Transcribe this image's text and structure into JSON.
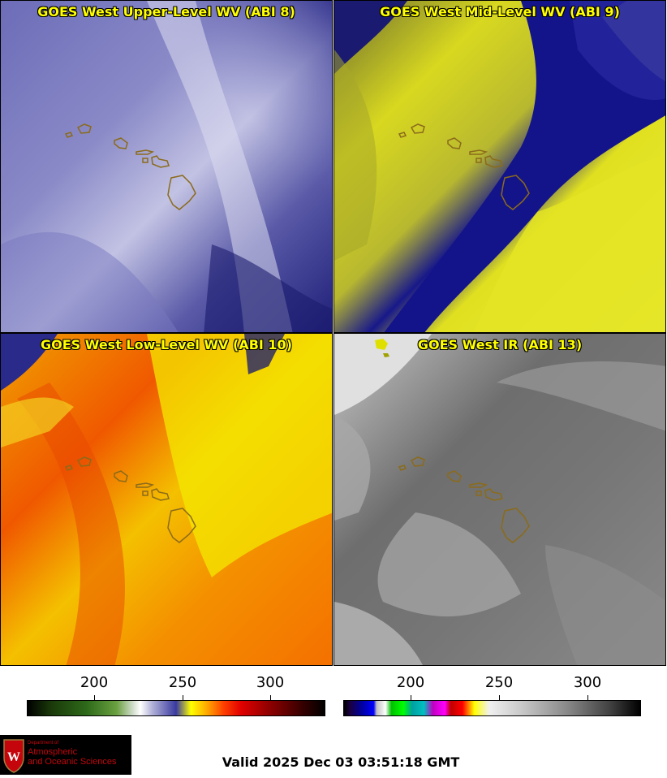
{
  "panels": [
    {
      "title": "GOES West Upper-Level WV (ABI 8)"
    },
    {
      "title": "GOES West Mid-Level WV (ABI 9)"
    },
    {
      "title": "GOES West Low-Level WV (ABI 10)"
    },
    {
      "title": "GOES West IR (ABI 13)"
    }
  ],
  "colorbars": [
    {
      "name": "water-vapor-colorbar",
      "ticks": [
        "200",
        "250",
        "300"
      ]
    },
    {
      "name": "ir-colorbar",
      "ticks": [
        "200",
        "250",
        "300"
      ]
    }
  ],
  "logo": {
    "line1": "Department of",
    "line2": "Atmospheric",
    "line3": "and Oceanic Sciences"
  },
  "valid_time": "Valid 2025 Dec 03 03:51:18 GMT",
  "colors": {
    "title_text": "#ffff00",
    "coastline": "#8b6b1a",
    "logo_red": "#c5050c"
  }
}
